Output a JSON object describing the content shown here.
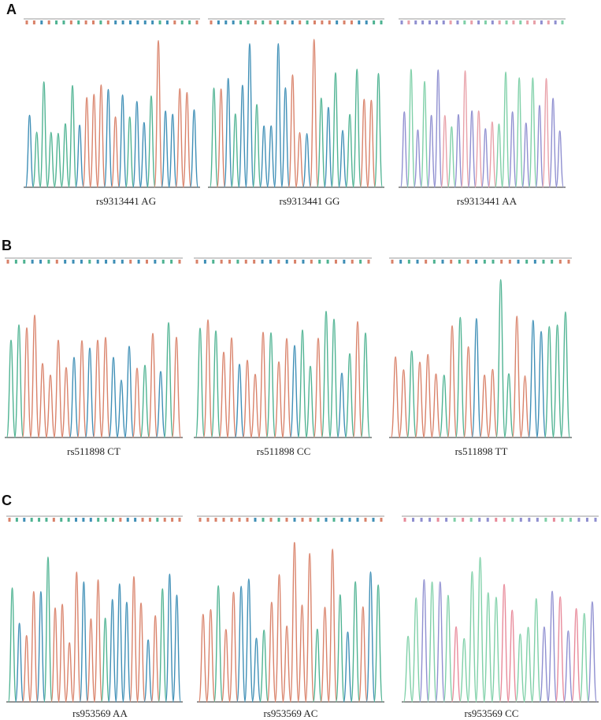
{
  "panels": [
    {
      "letter": "A",
      "traces": [
        {
          "caption": "rs9313441 AG",
          "colors": [
            "#d9826a",
            "#3f8fb6",
            "#4fb392",
            "#555555"
          ]
        },
        {
          "caption": "rs9313441 GG",
          "colors": [
            "#d9826a",
            "#3f8fb6",
            "#4fb392",
            "#555555"
          ]
        },
        {
          "caption": "rs9313441 AA",
          "colors": [
            "#8f8fd0",
            "#e8a0a8",
            "#7fd0a8",
            "#777777"
          ]
        }
      ]
    },
    {
      "letter": "B",
      "traces": [
        {
          "caption": "rs511898 CT",
          "colors": [
            "#d9826a",
            "#3f8fb6",
            "#4fb392",
            "#555555"
          ]
        },
        {
          "caption": "rs511898 CC",
          "colors": [
            "#d9826a",
            "#3f8fb6",
            "#4fb392",
            "#555555"
          ]
        },
        {
          "caption": "rs511898 TT",
          "colors": [
            "#d9826a",
            "#3f8fb6",
            "#4fb392",
            "#555555"
          ]
        }
      ]
    },
    {
      "letter": "C",
      "traces": [
        {
          "caption": "rs953569 AA",
          "colors": [
            "#d9826a",
            "#3f8fb6",
            "#4fb392",
            "#555555"
          ]
        },
        {
          "caption": "rs953569 AC",
          "colors": [
            "#d9826a",
            "#3f8fb6",
            "#4fb392",
            "#555555"
          ]
        },
        {
          "caption": "rs953569 CC",
          "colors": [
            "#e88a9a",
            "#8f8fd0",
            "#7fd0a8",
            "#777777"
          ]
        }
      ]
    }
  ]
}
